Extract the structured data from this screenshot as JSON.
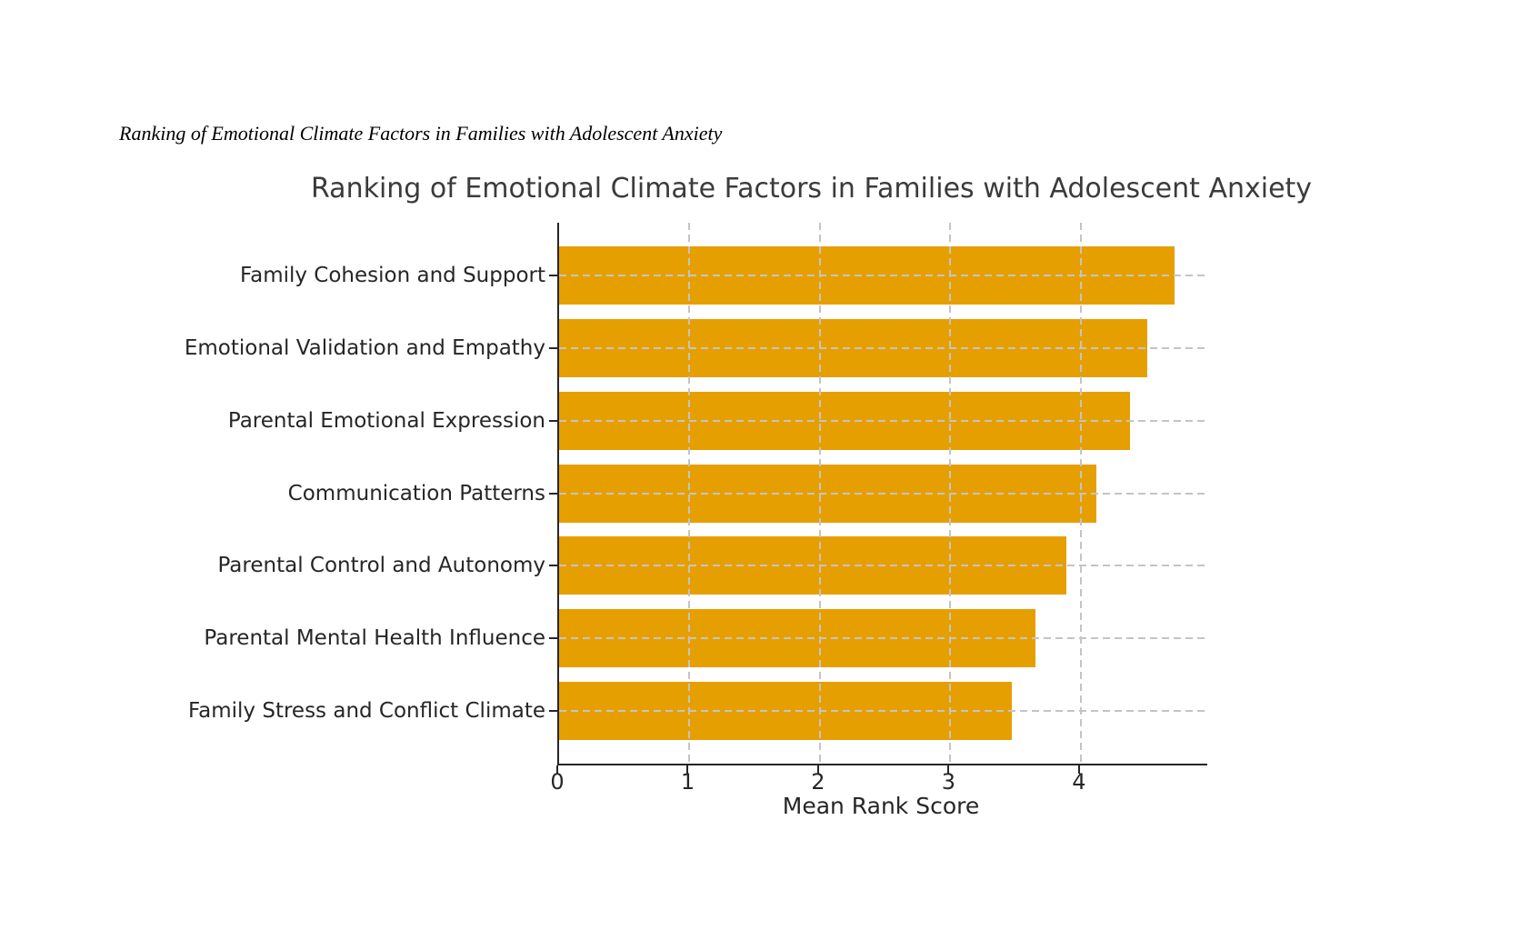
{
  "caption": {
    "text": "Ranking of Emotional Climate Factors in Families with Adolescent Anxiety"
  },
  "chart_data": {
    "type": "bar",
    "orientation": "horizontal",
    "title": "Ranking of Emotional Climate Factors in Families with Adolescent Anxiety",
    "xlabel": "Mean Rank Score",
    "ylabel": "",
    "categories": [
      "Family Cohesion and Support",
      "Emotional Validation and Empathy",
      "Parental Emotional Expression",
      "Communication Patterns",
      "Parental Control and Autonomy",
      "Parental Mental Health Influence",
      "Family Stress and Conflict Climate"
    ],
    "values": [
      4.72,
      4.51,
      4.38,
      4.12,
      3.89,
      3.65,
      3.47
    ],
    "xticks": [
      "0",
      "1",
      "2",
      "3",
      "4"
    ],
    "xlim": [
      0,
      4.97
    ],
    "grid": true,
    "grid_style": "dashed",
    "legend": false,
    "bar_color": "#E69F00",
    "grid_color": "#c4c4c4",
    "axis_color": "#262626",
    "title_color": "#3b3b3b",
    "background_color": "#ffffff"
  }
}
